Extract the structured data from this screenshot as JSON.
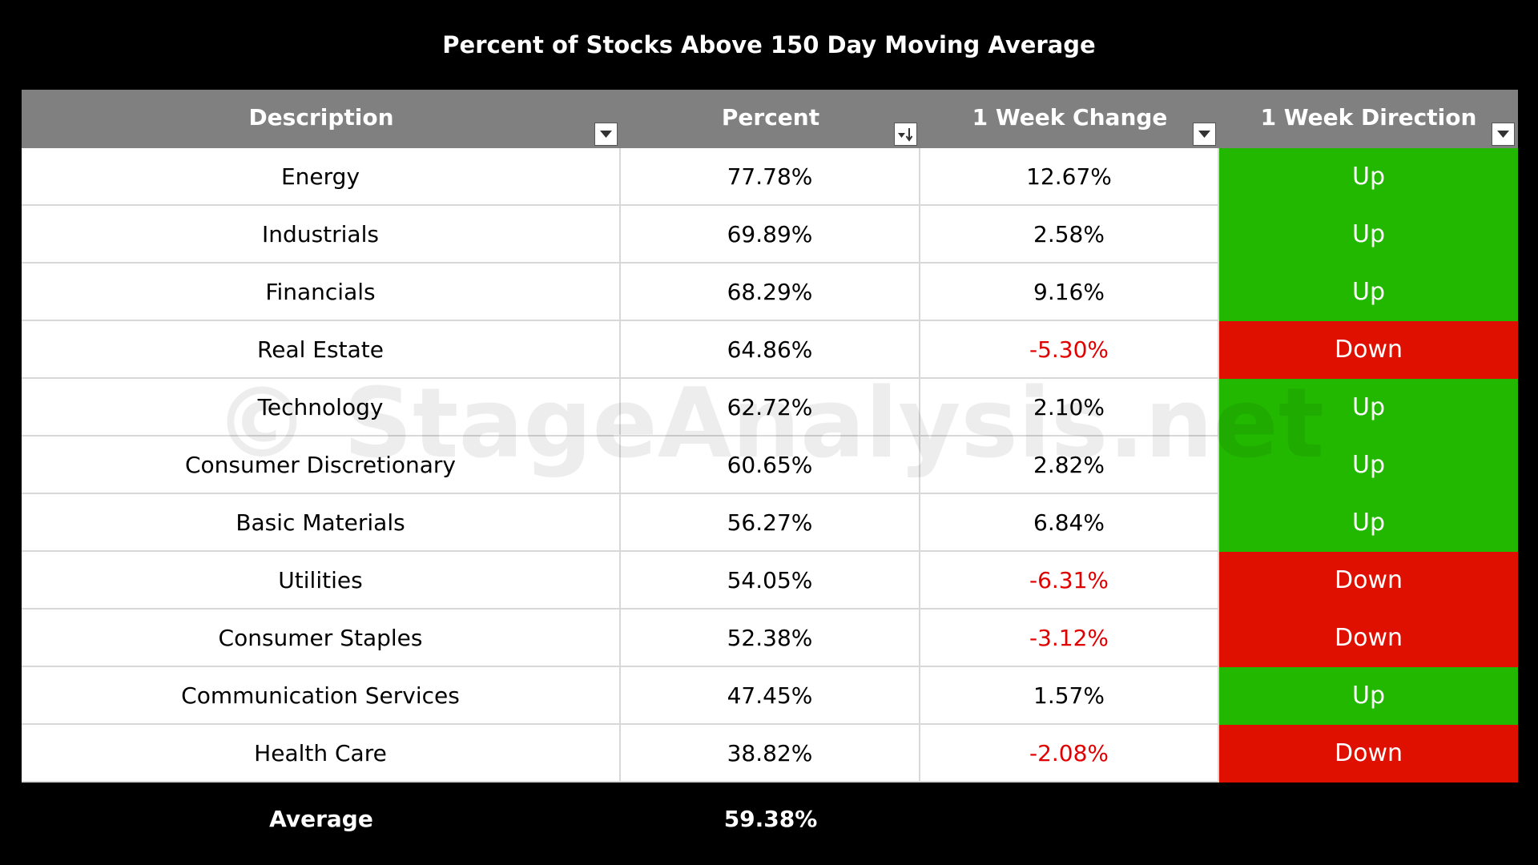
{
  "chart_data": {
    "type": "table",
    "title": "Percent of Stocks Above 150 Day Moving Average",
    "columns": [
      "Description",
      "Percent",
      "1 Week Change",
      "1 Week Direction"
    ],
    "rows": [
      {
        "description": "Energy",
        "percent": "77.78%",
        "change": "12.67%",
        "direction": "Up",
        "change_negative": false
      },
      {
        "description": "Industrials",
        "percent": "69.89%",
        "change": "2.58%",
        "direction": "Up",
        "change_negative": false
      },
      {
        "description": "Financials",
        "percent": "68.29%",
        "change": "9.16%",
        "direction": "Up",
        "change_negative": false
      },
      {
        "description": "Real Estate",
        "percent": "64.86%",
        "change": "-5.30%",
        "direction": "Down",
        "change_negative": true
      },
      {
        "description": "Technology",
        "percent": "62.72%",
        "change": "2.10%",
        "direction": "Up",
        "change_negative": false
      },
      {
        "description": "Consumer Discretionary",
        "percent": "60.65%",
        "change": "2.82%",
        "direction": "Up",
        "change_negative": false
      },
      {
        "description": "Basic Materials",
        "percent": "56.27%",
        "change": "6.84%",
        "direction": "Up",
        "change_negative": false
      },
      {
        "description": "Utilities",
        "percent": "54.05%",
        "change": "-6.31%",
        "direction": "Down",
        "change_negative": true
      },
      {
        "description": "Consumer Staples",
        "percent": "52.38%",
        "change": "-3.12%",
        "direction": "Down",
        "change_negative": true
      },
      {
        "description": "Communication Services",
        "percent": "47.45%",
        "change": "1.57%",
        "direction": "Up",
        "change_negative": false
      },
      {
        "description": "Health Care",
        "percent": "38.82%",
        "change": "-2.08%",
        "direction": "Down",
        "change_negative": true
      }
    ],
    "footer": {
      "label": "Average",
      "percent": "59.38%"
    },
    "watermark": "© StageAnalysis.net",
    "colors": {
      "up": "#22b800",
      "down": "#e01000",
      "negative_text": "#e00000",
      "header_bg": "#808080",
      "background": "#000000"
    },
    "icons": {
      "filter": "dropdown-arrow-icon",
      "sorted_filter": "sort-descending-icon"
    }
  }
}
